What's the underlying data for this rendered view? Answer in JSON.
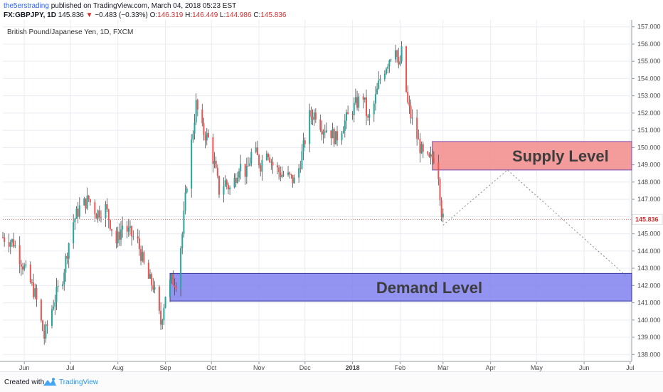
{
  "header": {
    "username": "the5erstrading",
    "published_text": "published on TradingView.com, March 04, 2018 05:23 EST",
    "symbol": "FX:GBPJPY, 1D",
    "last_price": "145.836",
    "change_arrow": "▼",
    "change": "−0.483 (−0.33%)",
    "open_label": "O:",
    "open": "146.319",
    "high_label": "H:",
    "high": "146.449",
    "low_label": "L:",
    "low": "144.986",
    "close_label": "C:",
    "close": "145.836"
  },
  "chart_data": {
    "type": "candlestick",
    "title": "British Pound/Japanese Yen, 1D, FXCM",
    "x_tick_labels": [
      "Jun",
      "Jul",
      "Aug",
      "Sep",
      "Oct",
      "Nov",
      "Dec",
      "2018",
      "Feb",
      "Mar",
      "Apr",
      "May",
      "Jun",
      "Jul"
    ],
    "y_tick_labels": [
      "138.000",
      "139.000",
      "140.000",
      "141.000",
      "142.000",
      "143.000",
      "144.000",
      "145.000",
      "146.000",
      "147.000",
      "148.000",
      "149.000",
      "150.000",
      "151.000",
      "152.000",
      "153.000",
      "154.000",
      "155.000",
      "156.000",
      "157.000"
    ],
    "ylim": [
      137.6,
      157.4
    ],
    "x_start": "2017-05-18",
    "x_end": "2018-07-02",
    "grid": true,
    "price_label": "145.836",
    "current_price": 145.836,
    "supply_zone": {
      "label": "Supply Level",
      "from": 148.7,
      "to": 150.35,
      "x_start": "2018-02-22",
      "x_end": "2018-07-02",
      "color": "#f28b8b"
    },
    "demand_zone": {
      "label": "Demand Level",
      "from": 141.1,
      "to": 142.7,
      "x_start": "2017-09-04",
      "x_end": "2018-07-02",
      "color": "#8080f0"
    },
    "projection": [
      [
        "2018-03-01",
        145.5
      ],
      [
        "2018-04-12",
        148.7
      ],
      [
        "2018-06-29",
        142.5
      ]
    ],
    "anchors": [
      [
        "2017-05-18",
        144.8
      ],
      [
        "2017-05-25",
        144.5
      ],
      [
        "2017-06-01",
        143.0
      ],
      [
        "2017-06-08",
        141.5
      ],
      [
        "2017-06-14",
        139.0
      ],
      [
        "2017-06-20",
        141.0
      ],
      [
        "2017-06-26",
        142.5
      ],
      [
        "2017-07-02",
        145.5
      ],
      [
        "2017-07-07",
        146.5
      ],
      [
        "2017-07-13",
        147.0
      ],
      [
        "2017-07-18",
        146.2
      ],
      [
        "2017-07-24",
        146.5
      ],
      [
        "2017-07-31",
        144.5
      ],
      [
        "2017-08-04",
        145.5
      ],
      [
        "2017-08-09",
        145.0
      ],
      [
        "2017-08-14",
        144.5
      ],
      [
        "2017-08-20",
        142.5
      ],
      [
        "2017-08-24",
        142.0
      ],
      [
        "2017-08-29",
        139.8
      ],
      [
        "2017-09-01",
        141.5
      ],
      [
        "2017-09-05",
        142.3
      ],
      [
        "2017-09-08",
        142.2
      ],
      [
        "2017-09-12",
        145.0
      ],
      [
        "2017-09-15",
        148.0
      ],
      [
        "2017-09-19",
        151.0
      ],
      [
        "2017-09-21",
        152.5
      ],
      [
        "2017-09-25",
        151.0
      ],
      [
        "2017-09-29",
        150.5
      ],
      [
        "2017-10-03",
        149.0
      ],
      [
        "2017-10-06",
        147.5
      ],
      [
        "2017-10-10",
        148.0
      ],
      [
        "2017-10-14",
        147.5
      ],
      [
        "2017-10-19",
        149.0
      ],
      [
        "2017-10-24",
        148.5
      ],
      [
        "2017-10-28",
        150.0
      ],
      [
        "2017-11-02",
        149.0
      ],
      [
        "2017-11-06",
        150.0
      ],
      [
        "2017-11-10",
        149.0
      ],
      [
        "2017-11-15",
        148.5
      ],
      [
        "2017-11-20",
        148.3
      ],
      [
        "2017-11-25",
        148.0
      ],
      [
        "2017-11-30",
        150.0
      ],
      [
        "2017-12-04",
        151.8
      ],
      [
        "2017-12-08",
        152.0
      ],
      [
        "2017-12-12",
        151.2
      ],
      [
        "2017-12-17",
        151.0
      ],
      [
        "2017-12-21",
        150.5
      ],
      [
        "2017-12-27",
        151.5
      ],
      [
        "2018-01-03",
        152.5
      ],
      [
        "2018-01-08",
        153.0
      ],
      [
        "2018-01-11",
        151.5
      ],
      [
        "2018-01-15",
        152.5
      ],
      [
        "2018-01-19",
        154.0
      ],
      [
        "2018-01-24",
        155.0
      ],
      [
        "2018-01-29",
        156.0
      ],
      [
        "2018-01-31",
        154.5
      ],
      [
        "2018-02-02",
        155.5
      ],
      [
        "2018-02-06",
        152.5
      ],
      [
        "2018-02-09",
        151.5
      ],
      [
        "2018-02-13",
        150.3
      ],
      [
        "2018-02-16",
        149.5
      ],
      [
        "2018-02-20",
        149.2
      ],
      [
        "2018-02-23",
        149.5
      ],
      [
        "2018-02-26",
        148.5
      ],
      [
        "2018-02-28",
        146.3
      ],
      [
        "2018-03-01",
        145.8
      ]
    ]
  },
  "footer": {
    "created_with": "Created with",
    "brand": "TradingView"
  },
  "colors": {
    "up": "#26a69a",
    "down": "#ef5350",
    "wick": "#4a4a4a",
    "grid": "#e9ecf1",
    "axis_text": "#4a4a4a",
    "price_line": "#e57373",
    "price_badge": "#ffffff",
    "price_badge_text": "#d32f2f"
  }
}
